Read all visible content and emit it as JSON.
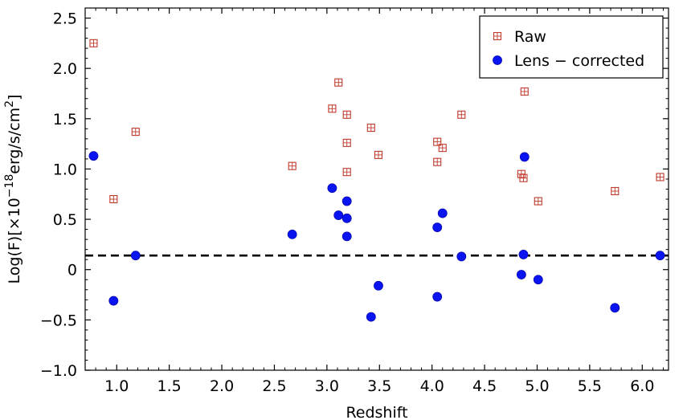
{
  "chart_data": {
    "type": "scatter",
    "title": "",
    "xlabel": "Redshift",
    "ylabel_parts": [
      "Log(F)[×10",
      "−18",
      "erg/s/cm",
      "2",
      "]"
    ],
    "xlim": [
      0.7,
      6.25
    ],
    "ylim": [
      -1.0,
      2.6
    ],
    "xticks": [
      1.0,
      1.5,
      2.0,
      2.5,
      3.0,
      3.5,
      4.0,
      4.5,
      5.0,
      5.5,
      6.0
    ],
    "xtick_labels": [
      "1.0",
      "1.5",
      "2.0",
      "2.5",
      "3.0",
      "3.5",
      "4.0",
      "4.5",
      "5.0",
      "5.5",
      "6.0"
    ],
    "yticks": [
      -1.0,
      -0.5,
      0.0,
      0.5,
      1.0,
      1.5,
      2.0,
      2.5
    ],
    "ytick_labels": [
      "−1.0",
      "−0.5",
      "0",
      "0.5",
      "1.0",
      "1.5",
      "2.0",
      "2.5"
    ],
    "reference_line": {
      "y": 0.14,
      "style": "dashed",
      "color": "#000000"
    },
    "legend_position": "top-right",
    "series": [
      {
        "name": "Raw",
        "marker": "open-square-plus",
        "color": "#c0392b",
        "points": [
          [
            0.78,
            2.25
          ],
          [
            0.97,
            0.7
          ],
          [
            1.18,
            1.37
          ],
          [
            2.67,
            1.03
          ],
          [
            3.05,
            1.6
          ],
          [
            3.11,
            1.86
          ],
          [
            3.19,
            1.54
          ],
          [
            3.19,
            1.26
          ],
          [
            3.19,
            0.97
          ],
          [
            3.42,
            1.41
          ],
          [
            3.49,
            1.14
          ],
          [
            4.05,
            1.27
          ],
          [
            4.05,
            1.07
          ],
          [
            4.1,
            1.21
          ],
          [
            4.28,
            1.54
          ],
          [
            4.85,
            0.95
          ],
          [
            4.87,
            0.91
          ],
          [
            4.88,
            1.77
          ],
          [
            5.01,
            0.68
          ],
          [
            5.74,
            0.78
          ],
          [
            6.17,
            0.92
          ]
        ]
      },
      {
        "name": "Lens − corrected",
        "marker": "filled-circle",
        "color": "#0a14f0",
        "points": [
          [
            0.78,
            1.13
          ],
          [
            0.97,
            -0.31
          ],
          [
            1.18,
            0.14
          ],
          [
            2.67,
            0.35
          ],
          [
            3.05,
            0.81
          ],
          [
            3.11,
            0.54
          ],
          [
            3.19,
            0.68
          ],
          [
            3.19,
            0.51
          ],
          [
            3.19,
            0.33
          ],
          [
            3.42,
            -0.47
          ],
          [
            3.49,
            -0.16
          ],
          [
            4.05,
            0.42
          ],
          [
            4.05,
            -0.27
          ],
          [
            4.1,
            0.56
          ],
          [
            4.28,
            0.13
          ],
          [
            4.85,
            -0.05
          ],
          [
            4.87,
            0.15
          ],
          [
            4.88,
            1.12
          ],
          [
            5.01,
            -0.1
          ],
          [
            5.74,
            -0.38
          ],
          [
            6.17,
            0.14
          ]
        ]
      }
    ]
  }
}
